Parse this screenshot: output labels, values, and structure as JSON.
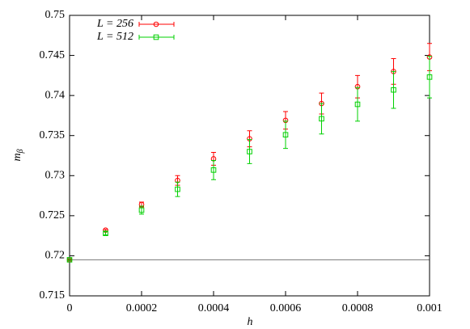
{
  "chart_data": {
    "type": "errorbar-scatter",
    "xlabel": "h",
    "ylabel": {
      "text": "m",
      "subscript": "β"
    },
    "x": [
      0,
      0.0001,
      0.0002,
      0.0003,
      0.0004,
      0.0005,
      0.0006,
      0.0007,
      0.0008,
      0.0009,
      0.001
    ],
    "series": [
      {
        "name": "L = 256",
        "color": "#ff0000",
        "marker": "circle",
        "values": [
          0.7195,
          0.7232,
          0.7264,
          0.7294,
          0.7321,
          0.7346,
          0.7369,
          0.739,
          0.7411,
          0.743,
          0.7448
        ],
        "errors": [
          5e-05,
          0.0001,
          0.0003,
          0.0006,
          0.0008,
          0.001,
          0.0011,
          0.0013,
          0.0014,
          0.0016,
          0.0017
        ]
      },
      {
        "name": "L = 512",
        "color": "#00d000",
        "marker": "square",
        "values": [
          0.7195,
          0.7228,
          0.7257,
          0.7283,
          0.7307,
          0.733,
          0.7351,
          0.7371,
          0.7389,
          0.7407,
          0.7423
        ],
        "errors": [
          0.0001,
          0.0002,
          0.0005,
          0.0009,
          0.0012,
          0.0015,
          0.0017,
          0.0019,
          0.0021,
          0.0023,
          0.0026
        ]
      }
    ],
    "hline": 0.7195,
    "xlim": [
      0,
      0.001
    ],
    "xticks": [
      0,
      0.0002,
      0.0004,
      0.0006,
      0.0008,
      0.001
    ],
    "ylim": [
      0.715,
      0.75
    ],
    "yticks": [
      0.715,
      0.72,
      0.725,
      0.73,
      0.735,
      0.74,
      0.745,
      0.75
    ],
    "legend": "top-left"
  }
}
